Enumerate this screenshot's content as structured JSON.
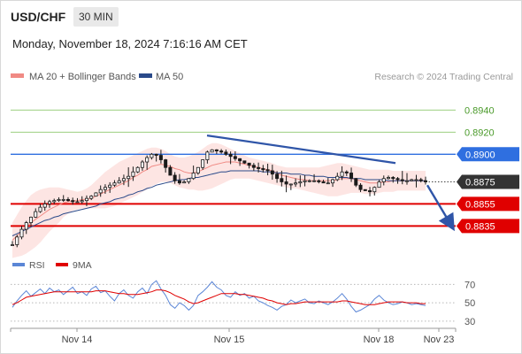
{
  "header": {
    "symbol": "USD/CHF",
    "timeframe": "30 MIN",
    "datetime": "Monday, November 18, 2024 7:16:16 AM CET"
  },
  "legend": {
    "items": [
      {
        "label": "MA 20 + Bollinger Bands",
        "color": "#f08a84"
      },
      {
        "label": "MA 50",
        "color": "#2a4a8a"
      }
    ],
    "credit": "Research © 2024 Trading Central"
  },
  "rsi_legend": {
    "items": [
      {
        "label": "RSI",
        "color": "#5b86d6"
      },
      {
        "label": "9MA",
        "color": "#e00000"
      }
    ]
  },
  "colors": {
    "resistance_green": "#4a9a2a",
    "pivot_blue": "#2f6fe0",
    "support_red": "#e00000",
    "current_black": "#333333",
    "trendline": "#2f55a8"
  },
  "chart_data": [
    {
      "type": "candlestick",
      "title": "",
      "ylim": [
        0.8812,
        0.8962
      ],
      "x_ticks": [
        "Nov 14",
        "Nov 15",
        "Nov 18",
        "Nov 23"
      ],
      "levels": [
        {
          "value": 0.894,
          "label": "0.8940",
          "style": "resistance"
        },
        {
          "value": 0.892,
          "label": "0.8920",
          "style": "resistance"
        },
        {
          "value": 0.89,
          "label": "0.8900",
          "style": "pivot"
        },
        {
          "value": 0.8875,
          "label": "0.8875",
          "style": "current"
        },
        {
          "value": 0.8855,
          "label": "0.8855",
          "style": "support"
        },
        {
          "value": 0.8835,
          "label": "0.8835",
          "style": "support"
        }
      ],
      "series": [
        {
          "name": "USD/CHF",
          "start": 0.8818,
          "path": [
            0.8818,
            0.8825,
            0.8832,
            0.8838,
            0.8843,
            0.8848,
            0.8852,
            0.8855,
            0.8857,
            0.8858,
            0.8859,
            0.8859,
            0.8858,
            0.8857,
            0.8857,
            0.8858,
            0.886,
            0.8862,
            0.8865,
            0.8868,
            0.887,
            0.8872,
            0.8874,
            0.8876,
            0.8878,
            0.888,
            0.8884,
            0.8888,
            0.8893,
            0.8897,
            0.89,
            0.8899,
            0.8895,
            0.8888,
            0.8881,
            0.8876,
            0.8874,
            0.8875,
            0.8878,
            0.8883,
            0.8888,
            0.8895,
            0.8902,
            0.8904,
            0.8903,
            0.8902,
            0.89,
            0.8898,
            0.8896,
            0.8894,
            0.8892,
            0.889,
            0.8888,
            0.8887,
            0.8886,
            0.8885,
            0.8882,
            0.8878,
            0.8875,
            0.8873,
            0.8873,
            0.8874,
            0.8875,
            0.8876,
            0.8876,
            0.8876,
            0.8875,
            0.8874,
            0.8874,
            0.8877,
            0.888,
            0.8884,
            0.8883,
            0.8878,
            0.8872,
            0.8868,
            0.8867,
            0.8866,
            0.887,
            0.8875,
            0.8878,
            0.8879,
            0.8878,
            0.8877,
            0.8876,
            0.8876,
            0.8877,
            0.8877,
            0.8876,
            0.8875
          ]
        },
        {
          "name": "MA 20",
          "start_index": 0,
          "path": [
            0.8822,
            0.8826,
            0.883,
            0.8834,
            0.8838,
            0.8841,
            0.8844,
            0.8847,
            0.885,
            0.8852,
            0.8854,
            0.8856,
            0.8857,
            0.8858,
            0.8858,
            0.8859,
            0.8859,
            0.886,
            0.8862,
            0.8864,
            0.8866,
            0.8868,
            0.887,
            0.8872,
            0.8874,
            0.8876,
            0.8879,
            0.8881,
            0.8884,
            0.8886,
            0.8889,
            0.889,
            0.8891,
            0.889,
            0.8889,
            0.8887,
            0.8886,
            0.8884,
            0.8883,
            0.8883,
            0.8884,
            0.8886,
            0.8888,
            0.889,
            0.8891,
            0.8892,
            0.8893,
            0.8893,
            0.8893,
            0.8892,
            0.8891,
            0.889,
            0.8889,
            0.8888,
            0.8887,
            0.8886,
            0.8885,
            0.8883,
            0.8881,
            0.888,
            0.8879,
            0.8878,
            0.8877,
            0.8877,
            0.8876,
            0.8876,
            0.8876,
            0.8876,
            0.8876,
            0.8876,
            0.8877,
            0.8878,
            0.8878,
            0.8878,
            0.8877,
            0.8876,
            0.8875,
            0.8874,
            0.8874,
            0.8874,
            0.8875,
            0.8875,
            0.8876,
            0.8876,
            0.8876,
            0.8876,
            0.8876,
            0.8876,
            0.8876,
            0.8876
          ]
        },
        {
          "name": "MA 50",
          "start_index": 0,
          "path": [
            0.8826,
            0.8828,
            0.883,
            0.8832,
            0.8834,
            0.8836,
            0.8838,
            0.884,
            0.8841,
            0.8843,
            0.8844,
            0.8846,
            0.8847,
            0.8848,
            0.8849,
            0.885,
            0.8851,
            0.8852,
            0.8853,
            0.8855,
            0.8856,
            0.8857,
            0.8859,
            0.886,
            0.8861,
            0.8863,
            0.8864,
            0.8866,
            0.8867,
            0.8869,
            0.887,
            0.8872,
            0.8873,
            0.8874,
            0.8875,
            0.8876,
            0.8877,
            0.8877,
            0.8878,
            0.8879,
            0.8879,
            0.888,
            0.8881,
            0.8882,
            0.8883,
            0.8884,
            0.8884,
            0.8885,
            0.8885,
            0.8885,
            0.8885,
            0.8885,
            0.8885,
            0.8885,
            0.8884,
            0.8884,
            0.8884,
            0.8883,
            0.8883,
            0.8883,
            0.8882,
            0.8882,
            0.8882,
            0.8881,
            0.8881,
            0.888,
            0.888,
            0.888,
            0.8879,
            0.8879,
            0.8879,
            0.8879,
            0.8879,
            0.8878,
            0.8878,
            0.8878,
            0.8877,
            0.8877,
            0.8877,
            0.8877,
            0.8877,
            0.8876,
            0.8876,
            0.8876,
            0.8876,
            0.8876,
            0.8876,
            0.8876,
            0.8876,
            0.8876
          ]
        },
        {
          "name": "Bollinger upper",
          "path": [
            0.8838,
            0.8845,
            0.8852,
            0.8858,
            0.8863,
            0.8866,
            0.8868,
            0.8869,
            0.887,
            0.887,
            0.887,
            0.8869,
            0.8868,
            0.8867,
            0.8866,
            0.8867,
            0.8869,
            0.8872,
            0.8876,
            0.888,
            0.8884,
            0.8887,
            0.889,
            0.8893,
            0.8895,
            0.8897,
            0.8899,
            0.8901,
            0.8903,
            0.8905,
            0.8906,
            0.8906,
            0.8905,
            0.8903,
            0.89,
            0.8898,
            0.8897,
            0.8897,
            0.8898,
            0.89,
            0.8902,
            0.8905,
            0.8908,
            0.891,
            0.891,
            0.8909,
            0.8907,
            0.8905,
            0.8903,
            0.8901,
            0.8899,
            0.8897,
            0.8896,
            0.8895,
            0.8894,
            0.8893,
            0.8892,
            0.889,
            0.8889,
            0.8888,
            0.8888,
            0.8888,
            0.8888,
            0.8888,
            0.8888,
            0.8888,
            0.8888,
            0.8889,
            0.889,
            0.8891,
            0.8892,
            0.8892,
            0.8891,
            0.889,
            0.8889,
            0.8888,
            0.8887,
            0.8886,
            0.8886,
            0.8886,
            0.8886,
            0.8886,
            0.8885,
            0.8885,
            0.8885,
            0.8885,
            0.8885,
            0.8885,
            0.8885,
            0.8885
          ]
        },
        {
          "name": "Bollinger lower",
          "path": [
            0.8806,
            0.8807,
            0.8808,
            0.881,
            0.8813,
            0.8816,
            0.882,
            0.8825,
            0.883,
            0.8834,
            0.8838,
            0.8843,
            0.8846,
            0.8849,
            0.885,
            0.8851,
            0.8851,
            0.8851,
            0.8851,
            0.8851,
            0.8851,
            0.8852,
            0.8853,
            0.8855,
            0.8857,
            0.8859,
            0.8861,
            0.8863,
            0.8866,
            0.8868,
            0.8871,
            0.8873,
            0.8875,
            0.8875,
            0.8874,
            0.8872,
            0.887,
            0.8869,
            0.8868,
            0.8868,
            0.8867,
            0.8867,
            0.8868,
            0.8869,
            0.8871,
            0.8873,
            0.8875,
            0.8877,
            0.8878,
            0.8878,
            0.8878,
            0.8878,
            0.8877,
            0.8876,
            0.8875,
            0.8874,
            0.8873,
            0.8872,
            0.8871,
            0.887,
            0.8869,
            0.8869,
            0.8868,
            0.8867,
            0.8866,
            0.8865,
            0.8864,
            0.8863,
            0.8862,
            0.8862,
            0.8862,
            0.8863,
            0.8864,
            0.8865,
            0.8865,
            0.8865,
            0.8864,
            0.8864,
            0.8864,
            0.8865,
            0.8866,
            0.8866,
            0.8866,
            0.8867,
            0.8867,
            0.8867,
            0.8867,
            0.8867,
            0.8867,
            0.8867
          ]
        }
      ],
      "trendline": [
        0.8917,
        0.8892
      ],
      "forecast": [
        0.8872,
        0.8837
      ]
    },
    {
      "type": "line",
      "title": "",
      "ylim": [
        25,
        80
      ],
      "y_ticks": [
        70,
        50,
        30
      ],
      "series": [
        {
          "name": "RSI",
          "values": [
            45,
            52,
            58,
            63,
            57,
            61,
            65,
            60,
            66,
            62,
            64,
            59,
            63,
            67,
            60,
            62,
            58,
            65,
            68,
            61,
            63,
            57,
            52,
            60,
            64,
            58,
            55,
            62,
            66,
            60,
            70,
            74,
            65,
            58,
            48,
            44,
            50,
            47,
            42,
            47,
            58,
            62,
            67,
            73,
            67,
            64,
            58,
            56,
            62,
            58,
            60,
            55,
            57,
            52,
            50,
            47,
            45,
            42,
            46,
            48,
            53,
            50,
            52,
            54,
            50,
            49,
            52,
            50,
            48,
            51,
            55,
            60,
            54,
            46,
            40,
            42,
            45,
            48,
            54,
            58,
            53,
            50,
            48,
            49,
            51,
            50,
            48,
            49,
            48,
            47
          ]
        },
        {
          "name": "9MA",
          "values": [
            48,
            50,
            53,
            56,
            57,
            58,
            59,
            60,
            61,
            62,
            62,
            62,
            62,
            62,
            62,
            62,
            62,
            62,
            63,
            63,
            63,
            62,
            61,
            60,
            60,
            59,
            59,
            59,
            60,
            61,
            62,
            64,
            64,
            63,
            61,
            58,
            56,
            54,
            51,
            49,
            50,
            52,
            54,
            56,
            58,
            60,
            60,
            60,
            60,
            59,
            59,
            58,
            57,
            56,
            55,
            53,
            52,
            50,
            49,
            48,
            49,
            49,
            50,
            51,
            51,
            51,
            51,
            51,
            51,
            51,
            51,
            52,
            52,
            51,
            50,
            49,
            48,
            48,
            48,
            49,
            50,
            51,
            51,
            51,
            51,
            50,
            50,
            50,
            49,
            49
          ]
        }
      ]
    }
  ]
}
